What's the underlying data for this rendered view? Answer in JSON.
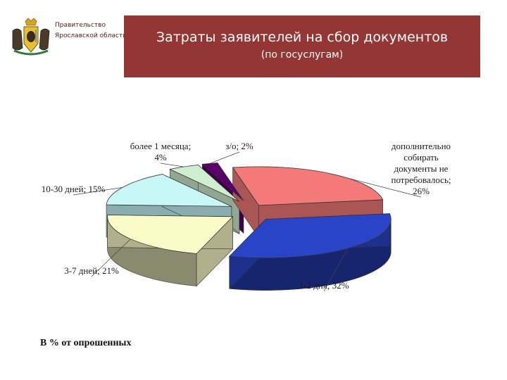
{
  "header": {
    "org_line1": "Правительство",
    "org_line2": "Ярославской области",
    "title": "Затраты заявителей на сбор документов",
    "subtitle": "(по госуслугам)"
  },
  "footnote": "В % от опрошенных",
  "chart_data": {
    "type": "pie",
    "style": "3d-exploded",
    "slices": [
      {
        "label_lines": [
          "дополнительно",
          "собирать",
          "документы не",
          "потребовалось;",
          "26%"
        ],
        "value": 26,
        "color": "#f47a7a"
      },
      {
        "label_lines": [
          "1-2 дня; 32%"
        ],
        "value": 32,
        "color": "#2a44c8"
      },
      {
        "label_lines": [
          "3-7 дней; 21%"
        ],
        "value": 21,
        "color": "#fbfbc8"
      },
      {
        "label_lines": [
          "10-30 дней; 15%"
        ],
        "value": 15,
        "color": "#c8f7f7"
      },
      {
        "label_lines": [
          "более 1 месяца;",
          "4%"
        ],
        "value": 4,
        "color": "#cfeecf"
      },
      {
        "label_lines": [
          "з/о; 2%"
        ],
        "value": 2,
        "color": "#5a006a"
      }
    ]
  }
}
